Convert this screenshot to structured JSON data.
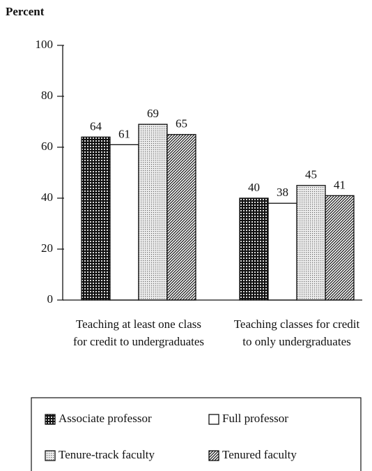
{
  "chart_data": {
    "type": "bar",
    "y_label": "Percent",
    "categories": [
      "Teaching at least one class for credit to undergraduates",
      "Teaching classes for credit to only undergraduates"
    ],
    "series": [
      {
        "name": "Associate professor",
        "pattern": "checker",
        "values": [
          64,
          40
        ]
      },
      {
        "name": "Full professor",
        "pattern": "none",
        "values": [
          61,
          38
        ]
      },
      {
        "name": "Tenure-track faculty",
        "pattern": "dots",
        "values": [
          69,
          45
        ]
      },
      {
        "name": "Tenured faculty",
        "pattern": "diagonal",
        "values": [
          65,
          41
        ]
      }
    ],
    "ylim": [
      0,
      100
    ],
    "yticks": [
      0,
      20,
      40,
      60,
      80,
      100
    ]
  }
}
